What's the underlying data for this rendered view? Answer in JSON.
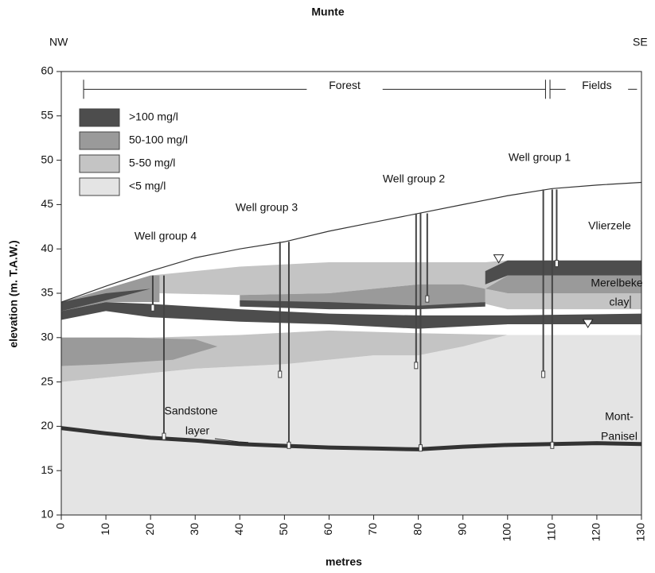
{
  "chart_data": {
    "type": "cross-section",
    "title": "Munte",
    "left_label": "NW",
    "right_label": "SE",
    "xlabel": "metres",
    "ylabel": "elevation (m. T.A.W.)",
    "xlim": [
      0,
      130
    ],
    "ylim": [
      10,
      60
    ],
    "xticks": [
      0,
      10,
      20,
      30,
      40,
      50,
      60,
      70,
      80,
      90,
      100,
      110,
      120,
      130
    ],
    "yticks": [
      10,
      15,
      20,
      25,
      30,
      35,
      40,
      45,
      50,
      55,
      60
    ],
    "series": [
      {
        "name": ">100 mg/l",
        "color": "#4d4d4d",
        "polygons": [
          {
            "x": [
              0,
              10,
              20,
              40,
              60,
              80,
              100,
              130,
              130,
              100,
              80,
              60,
              40,
              20,
              10,
              0
            ],
            "y": [
              33,
              34,
              33.8,
              33.2,
              32.7,
              32.5,
              32.5,
              32.7,
              31.5,
              31.5,
              31,
              31.5,
              31.8,
              32.3,
              33,
              32
            ]
          },
          {
            "x": [
              0,
              10,
              20,
              10,
              0
            ],
            "y": [
              34,
              35,
              35.5,
              34.2,
              33
            ]
          },
          {
            "x": [
              95,
              100,
              130,
              130,
              100,
              95
            ],
            "y": [
              37.5,
              38.7,
              38.7,
              37,
              37,
              36
            ]
          },
          {
            "x": [
              40,
              60,
              80,
              95,
              95,
              80,
              60,
              40
            ],
            "y": [
              34.2,
              34,
              33.6,
              34,
              33.5,
              33.2,
              33.2,
              33.5
            ]
          }
        ]
      },
      {
        "name": "50-100 mg/l",
        "color": "#9a9a9a",
        "polygons": [
          {
            "x": [
              0,
              15,
              30,
              35,
              25,
              10,
              0
            ],
            "y": [
              30,
              30,
              29.8,
              29,
              27.5,
              27,
              26.8
            ]
          },
          {
            "x": [
              0,
              10,
              20,
              22,
              22,
              10,
              0
            ],
            "y": [
              34,
              35.5,
              37,
              37,
              34,
              34,
              33
            ]
          },
          {
            "x": [
              40,
              60,
              70,
              80,
              90,
              95,
              95,
              80,
              60,
              40
            ],
            "y": [
              34.8,
              35,
              35.5,
              36,
              36,
              35.5,
              34,
              33.5,
              33.5,
              33.8
            ]
          },
          {
            "x": [
              100,
              130,
              130,
              100,
              95
            ],
            "y": [
              37,
              37,
              35,
              35,
              35.5
            ]
          }
        ]
      },
      {
        "name": "5-50 mg/l",
        "color": "#c4c4c4",
        "polygons": [
          {
            "x": [
              0,
              20,
              40,
              60,
              80,
              100,
              90,
              80,
              70,
              50,
              30,
              10,
              0
            ],
            "y": [
              30,
              30,
              30.3,
              30.8,
              30.5,
              30.3,
              29,
              28,
              28,
              27,
              26.5,
              25.5,
              25
            ]
          },
          {
            "x": [
              20,
              40,
              60,
              80,
              95,
              100,
              130,
              130,
              100,
              95,
              80,
              60,
              40,
              22
            ],
            "y": [
              37,
              38,
              38.5,
              38.5,
              38.5,
              38.7,
              38.7,
              37,
              37,
              35.5,
              36,
              35,
              34.8,
              35
            ]
          },
          {
            "x": [
              95,
              100,
              130,
              130,
              100,
              95
            ],
            "y": [
              35.5,
              35,
              35,
              33.2,
              33.2,
              33.8
            ]
          }
        ]
      },
      {
        "name": "<5 mg/l",
        "color": "#e4e4e4",
        "polygons": [
          {
            "x": [
              0,
              10,
              30,
              50,
              70,
              80,
              90,
              100,
              130,
              130,
              0
            ],
            "y": [
              25,
              25.5,
              26.5,
              27,
              28,
              28,
              29,
              30.3,
              30.3,
              10,
              10
            ]
          }
        ]
      }
    ],
    "surface": {
      "x": [
        0,
        10,
        20,
        30,
        40,
        50,
        60,
        70,
        80,
        90,
        100,
        110,
        120,
        130
      ],
      "y": [
        34,
        35.8,
        37.5,
        39,
        40,
        40.8,
        42,
        43,
        44,
        45,
        46,
        46.8,
        47.2,
        47.5
      ]
    },
    "sandstone": {
      "x": [
        0,
        10,
        20,
        30,
        40,
        50,
        60,
        70,
        80,
        90,
        100,
        110,
        120,
        130
      ],
      "y": [
        19.8,
        19.2,
        18.7,
        18.4,
        18,
        17.8,
        17.6,
        17.5,
        17.4,
        17.7,
        17.9,
        18,
        18.1,
        18
      ]
    },
    "wells": {
      "x": [
        20.5,
        23,
        49,
        51,
        79.5,
        80.5,
        82,
        108,
        110,
        111
      ],
      "top": [
        37,
        37,
        40.8,
        40.8,
        44,
        44,
        44,
        46.7,
        46.7,
        46.7
      ],
      "bottom": [
        33,
        18.5,
        25.5,
        17.5,
        26.5,
        17.2,
        34,
        25.5,
        17.5,
        38
      ]
    },
    "water_table": {
      "x": [
        98,
        118
      ],
      "y": [
        38.8,
        31.5
      ]
    },
    "annotations": {
      "forest": "Forest",
      "fields": "Fields",
      "well_groups": [
        "Well group 4",
        "Well group 3",
        "Well group 2",
        "Well group 1"
      ],
      "vlierzele": "Vlierzele",
      "merelbeke_clay": [
        "Merelbeke",
        "clay"
      ],
      "sandstone_layer": [
        "Sandstone",
        "layer"
      ],
      "mont_panisel": [
        "Mont-",
        "Panisel"
      ]
    }
  }
}
